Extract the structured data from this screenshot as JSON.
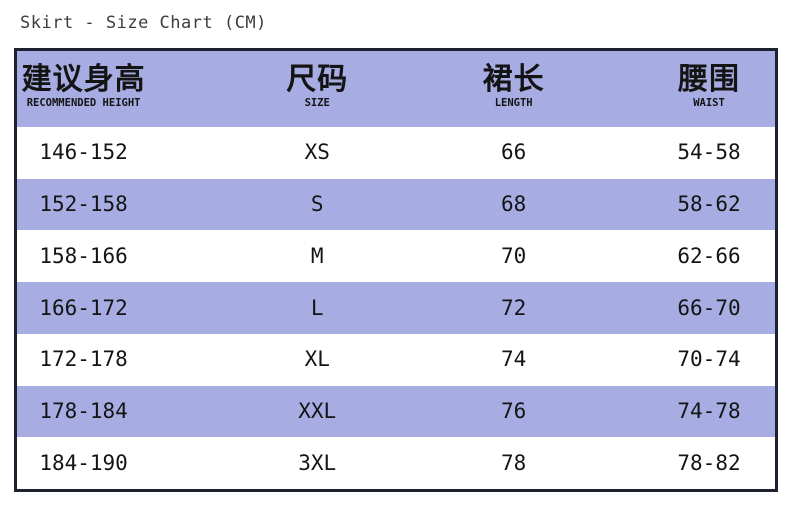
{
  "title": "Skirt - Size Chart (CM)",
  "table": {
    "columns": [
      {
        "key": "height",
        "zh": "建议身高",
        "en": "RECOMMENDED HEIGHT"
      },
      {
        "key": "size",
        "zh": "尺码",
        "en": "SIZE"
      },
      {
        "key": "length",
        "zh": "裙长",
        "en": "LENGTH"
      },
      {
        "key": "waist",
        "zh": "腰围",
        "en": "WAIST"
      }
    ],
    "rows": [
      {
        "height": "146-152",
        "size": "XS",
        "length": "66",
        "waist": "54-58"
      },
      {
        "height": "152-158",
        "size": "S",
        "length": "68",
        "waist": "58-62"
      },
      {
        "height": "158-166",
        "size": "M",
        "length": "70",
        "waist": "62-66"
      },
      {
        "height": "166-172",
        "size": "L",
        "length": "72",
        "waist": "66-70"
      },
      {
        "height": "172-178",
        "size": "XL",
        "length": "74",
        "waist": "70-74"
      },
      {
        "height": "178-184",
        "size": "XXL",
        "length": "76",
        "waist": "74-78"
      },
      {
        "height": "184-190",
        "size": "3XL",
        "length": "78",
        "waist": "78-82"
      }
    ]
  },
  "colors": {
    "header_bg": "#a7ade3",
    "stripe_bg": "#a7ade3",
    "row_bg": "#ffffff",
    "border": "#1e2230",
    "title_text": "#3d3d3d",
    "cell_text": "#141414"
  }
}
